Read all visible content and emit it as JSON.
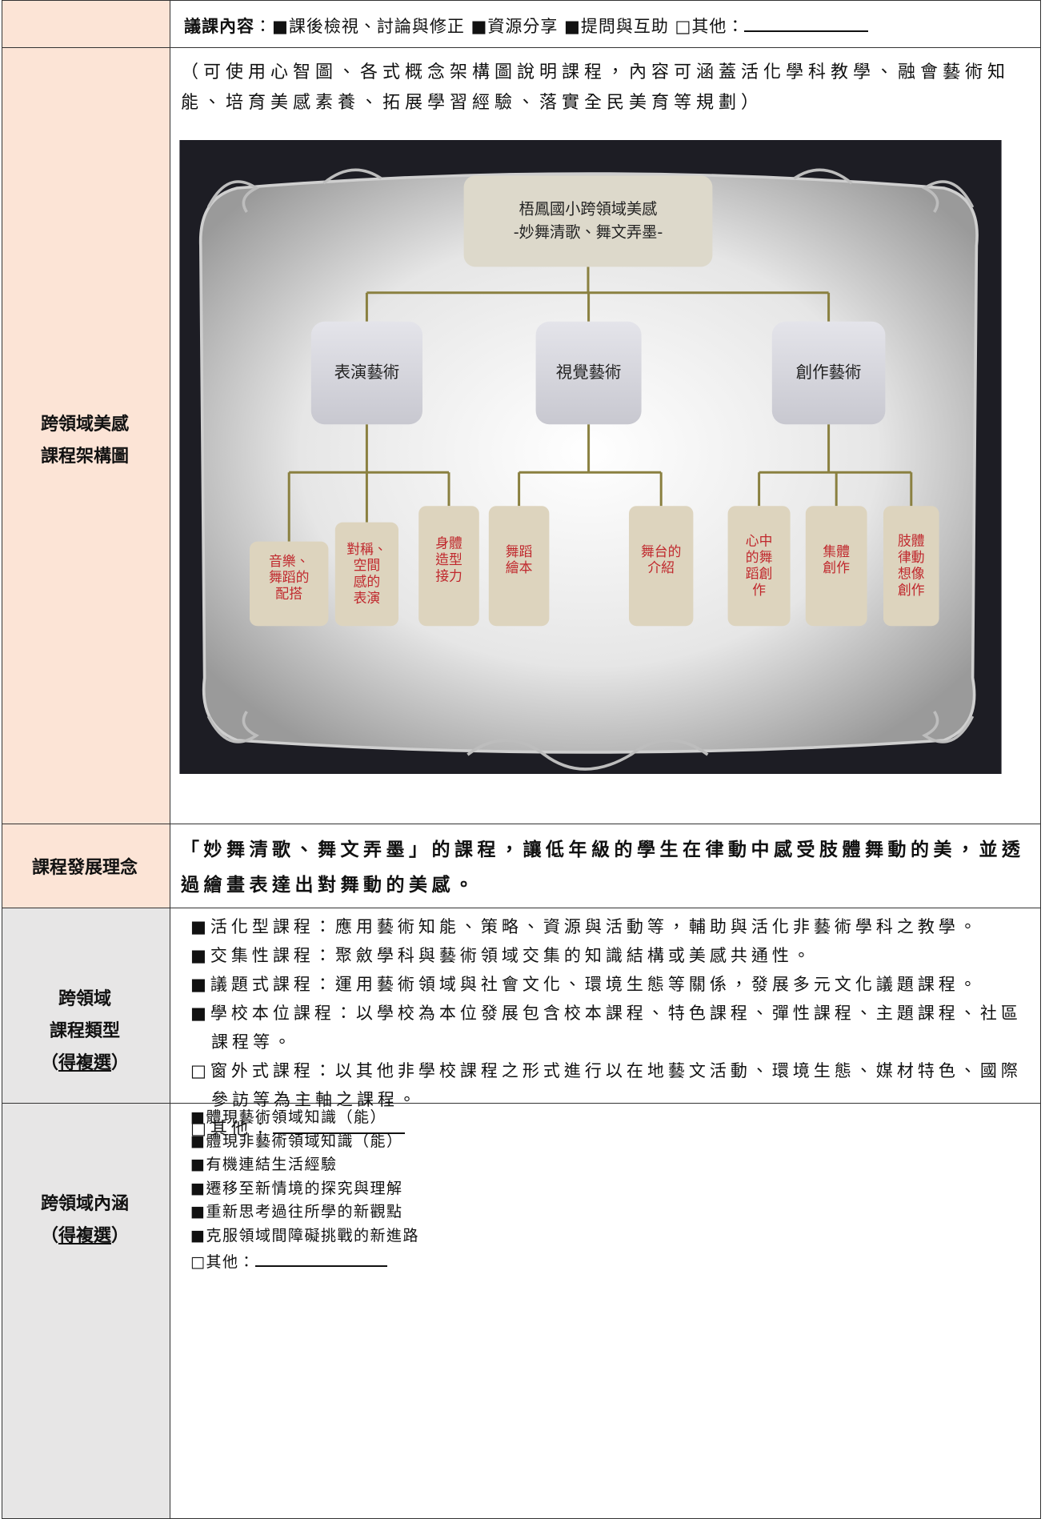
{
  "discussion": {
    "title": "議課內容",
    "items": "：■課後檢視、討論與修正 ■資源分享 ■提問與互助 □其他："
  },
  "framework": {
    "label": [
      "跨領域美感",
      "課程架構圖"
    ],
    "note": "（可使用心智圖、各式概念架構圖說明課程，內容可涵蓋活化學科教學、融會藝術知能、培育美感素養、拓展學習經驗、落實全民美育等規劃）",
    "diagram": {
      "root": [
        "梧鳳國小跨領域美感",
        "-妙舞清歌、舞文弄墨-"
      ],
      "branches": [
        {
          "label": "表演藝術",
          "leaves": [
            [
              "音樂、",
              "舞蹈的",
              "配搭"
            ],
            [
              "對稱、",
              "空間",
              "感的",
              "表演"
            ],
            [
              "身體",
              "造型",
              "接力"
            ]
          ]
        },
        {
          "label": "視覺藝術",
          "leaves": [
            [
              "舞蹈",
              "繪本"
            ],
            [
              "舞台的",
              "介紹"
            ]
          ]
        },
        {
          "label": "創作藝術",
          "leaves": [
            [
              "心中",
              "的舞",
              "蹈創",
              "作"
            ],
            [
              "集體",
              "創作"
            ],
            [
              "肢體",
              "律動",
              "想像",
              "創作"
            ]
          ]
        }
      ]
    }
  },
  "philosophy": {
    "label": "課程發展理念",
    "text": "「妙舞清歌、舞文弄墨」的課程，讓低年級的學生在律動中感受肢體舞動的美，並透過繪畫表達出對舞動的美感。"
  },
  "course_types": {
    "label": [
      "跨領域",
      "課程類型"
    ],
    "note": [
      "（",
      "得複選",
      "）"
    ],
    "items": [
      "■活化型課程：應用藝術知能、策略、資源與活動等，輔助與活化非藝術學科之教學。",
      "■交集性課程：聚斂學科與藝術領域交集的知識結構或美感共通性。",
      "■議題式課程：運用藝術領域與社會文化、環境生態等關係，發展多元文化議題課程。",
      "■學校本位課程：以學校為本位發展包含校本課程、特色課程、彈性課程、主題課程、社區課程等。",
      "□窗外式課程：以其他非學校課程之形式進行以在地藝文活動、環境生態、媒材特色、國際參訪等為主軸之課程。"
    ],
    "other": "□其他："
  },
  "connotation": {
    "label": [
      "跨領域內涵"
    ],
    "note": [
      "（",
      "得複選",
      "）"
    ],
    "items": [
      "■體現藝術領域知識（能）",
      "■體現非藝術領域知識（能）",
      "■有機連結生活經驗",
      "■遷移至新情境的探究與理解",
      "■重新思考過往所學的新觀點",
      "■克服領域間障礙挑戰的新進路"
    ],
    "other": "□其他："
  }
}
